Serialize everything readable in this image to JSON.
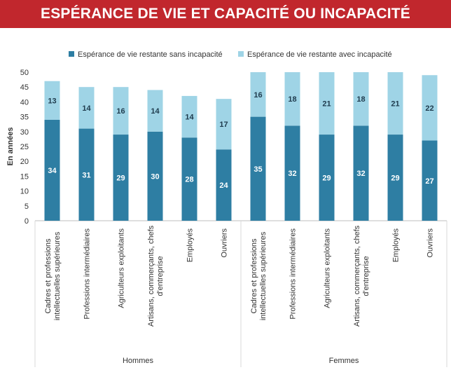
{
  "header": {
    "title": "ESPÉRANCE DE VIE ET CAPACITÉ OU INCAPACITÉ"
  },
  "colors": {
    "title_bg": "#c1272d",
    "dark": "#2e7ea3",
    "light": "#9fd4e6",
    "dark_text": "#ffffff",
    "light_text": "#1f3b4d"
  },
  "chart_data": {
    "type": "bar",
    "stacked": true,
    "ylabel": "En années",
    "ylim": [
      0,
      50
    ],
    "yticks": [
      0,
      5,
      10,
      15,
      20,
      25,
      30,
      35,
      40,
      45,
      50
    ],
    "grid": false,
    "legend_position": "top",
    "categories": [
      "Cadres et professions intellectuelles supérieures",
      "Professions intermédiaires",
      "Agriculteurs exploitants",
      "Artisans, commerçants, chefs d'entreprise",
      "Employés",
      "Ouvriers",
      "Cadres et professions intellectuelles supérieures",
      "Professions intermédiaires",
      "Agriculteurs exploitants",
      "Artisans, commerçants, chefs d'entreprise",
      "Employés",
      "Ouvriers"
    ],
    "category_lines": [
      [
        "Cadres et professions",
        "intellectuelles supérieures"
      ],
      [
        "Professions intermédiaires"
      ],
      [
        "Agriculteurs exploitants"
      ],
      [
        "Artisans, commerçants, chefs",
        "d'entreprise"
      ],
      [
        "Employés"
      ],
      [
        "Ouvriers"
      ],
      [
        "Cadres et professions",
        "intellectuelles supérieures"
      ],
      [
        "Professions intermédiaires"
      ],
      [
        "Agriculteurs exploitants"
      ],
      [
        "Artisans, commerçants, chefs",
        "d'entreprise"
      ],
      [
        "Employés"
      ],
      [
        "Ouvriers"
      ]
    ],
    "groups": [
      {
        "label": "Hommes",
        "start": 0,
        "end": 5
      },
      {
        "label": "Femmes",
        "start": 6,
        "end": 11
      }
    ],
    "series": [
      {
        "name": "Espérance de vie restante sans incapacité",
        "values": [
          34,
          31,
          29,
          30,
          28,
          24,
          35,
          32,
          29,
          32,
          29,
          27
        ]
      },
      {
        "name": "Espérance de vie restante avec incapacité",
        "values": [
          13,
          14,
          16,
          14,
          14,
          17,
          16,
          18,
          21,
          18,
          21,
          22
        ]
      }
    ]
  }
}
